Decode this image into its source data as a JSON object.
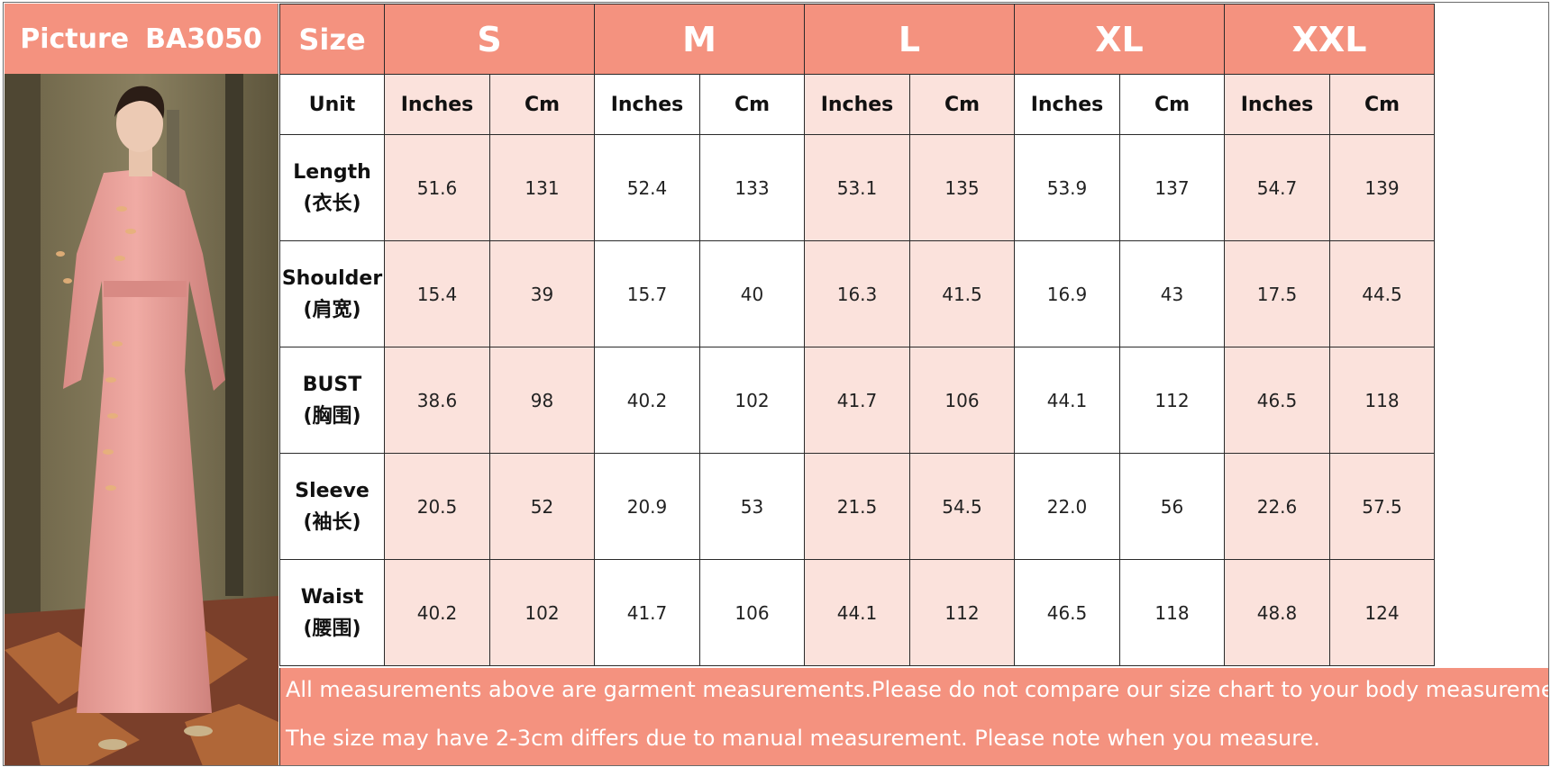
{
  "header": {
    "picture_label": "Picture",
    "product_code": "BA3050",
    "size_label": "Size",
    "unit_label": "Unit",
    "sizes": [
      "S",
      "M",
      "L",
      "XL",
      "XXL"
    ],
    "units": [
      "Inches",
      "Cm",
      "Inches",
      "Cm",
      "Inches",
      "Cm",
      "Inches",
      "Cm",
      "Inches",
      "Cm"
    ]
  },
  "rows": [
    {
      "name_en": "Length",
      "name_cn": "(衣长)",
      "values": [
        "51.6",
        "131",
        "52.4",
        "133",
        "53.1",
        "135",
        "53.9",
        "137",
        "54.7",
        "139"
      ]
    },
    {
      "name_en": "Shoulder",
      "name_cn": "(肩宽)",
      "values": [
        "15.4",
        "39",
        "15.7",
        "40",
        "16.3",
        "41.5",
        "16.9",
        "43",
        "17.5",
        "44.5"
      ]
    },
    {
      "name_en": "BUST",
      "name_cn": "(胸围)",
      "values": [
        "38.6",
        "98",
        "40.2",
        "102",
        "41.7",
        "106",
        "44.1",
        "112",
        "46.5",
        "118"
      ]
    },
    {
      "name_en": "Sleeve",
      "name_cn": "(袖长)",
      "values": [
        "20.5",
        "52",
        "20.9",
        "53",
        "21.5",
        "54.5",
        "22.0",
        "56",
        "22.6",
        "57.5"
      ]
    },
    {
      "name_en": "Waist",
      "name_cn": "(腰围)",
      "values": [
        "40.2",
        "102",
        "41.7",
        "106",
        "44.1",
        "112",
        "46.5",
        "118",
        "48.8",
        "124"
      ]
    }
  ],
  "notes": {
    "line1": "All measurements above are garment measurements.Please do not compare our size chart to your body measurements.",
    "line2": "The size may have 2-3cm differs due to manual measurement. Please note when you measure."
  },
  "colors": {
    "header_salmon": "#f4927f",
    "cell_pink": "#fbe2dc",
    "dress_pink": "#e9a09a"
  }
}
